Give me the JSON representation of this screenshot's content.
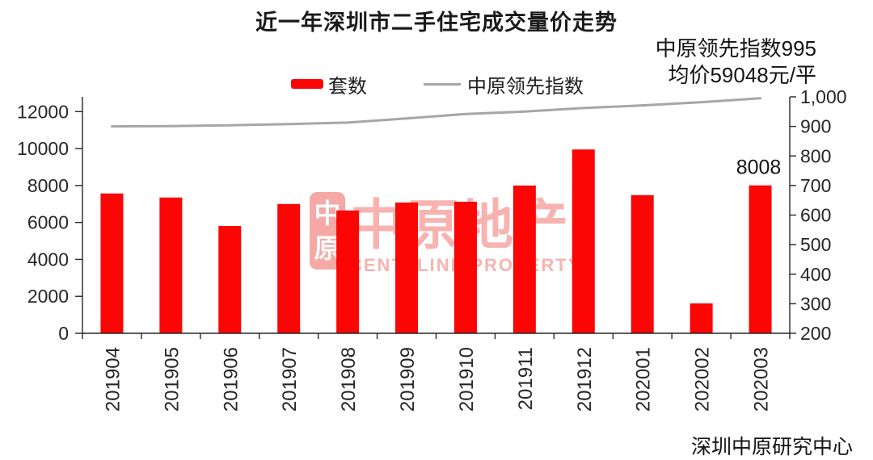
{
  "header": {
    "title": "近一年深圳市二手住宅成交量价走势"
  },
  "annotation": {
    "line1": "中原领先指数995",
    "line2": "均价59048元/平"
  },
  "watermark": {
    "logo_top": "中",
    "logo_bottom": "原",
    "name": "中原地产",
    "name_en": "CENTALINE PROPERTY",
    "color": "#f8b3b0"
  },
  "footer": {
    "source": "深圳中原研究中心"
  },
  "chart_data": {
    "type": "bar",
    "title": "近一年深圳市二手住宅成交量价走势",
    "categories": [
      "201904",
      "201905",
      "201906",
      "201907",
      "201908",
      "201909",
      "201910",
      "201911",
      "201912",
      "202001",
      "202002",
      "202003"
    ],
    "series": [
      {
        "name": "套数",
        "type": "bar",
        "axis": "left",
        "color": "#fb0505",
        "values": [
          7570,
          7350,
          5810,
          7000,
          6650,
          7080,
          7120,
          8000,
          9950,
          7480,
          1620,
          8008
        ]
      },
      {
        "name": "中原领先指数",
        "type": "line",
        "axis": "right",
        "color": "#a6a6a6",
        "values": [
          900,
          901,
          904,
          908,
          913,
          927,
          942,
          950,
          962,
          971,
          982,
          995
        ]
      }
    ],
    "left_axis": {
      "min": 0,
      "max": 12000,
      "scale_max": 12800,
      "ticks": [
        0,
        2000,
        4000,
        6000,
        8000,
        10000,
        12000
      ],
      "tick_labels": [
        "0",
        "2000",
        "4000",
        "6000",
        "8000",
        "10000",
        "12000"
      ]
    },
    "right_axis": {
      "min": 200,
      "max": 1000,
      "ticks": [
        200,
        300,
        400,
        500,
        600,
        700,
        800,
        900,
        1000
      ],
      "tick_labels": [
        "200",
        "300",
        "400",
        "500",
        "600",
        "700",
        "800",
        "900",
        "1,000"
      ]
    },
    "bar_label": {
      "category": "202003",
      "text": "8008"
    },
    "legend_position": "top",
    "grid": false,
    "axis_color": "#262626",
    "text_color": "#262626"
  }
}
